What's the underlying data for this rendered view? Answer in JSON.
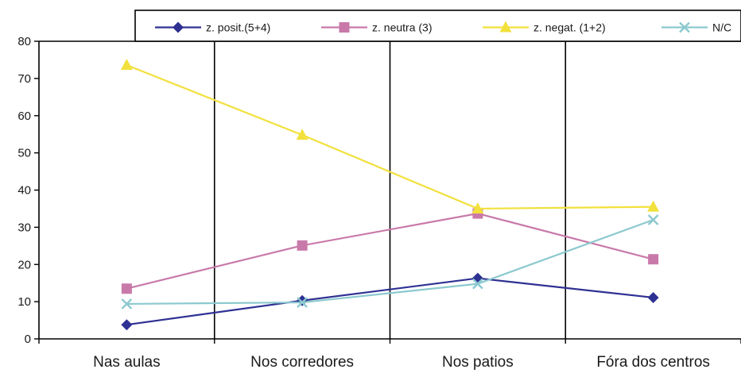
{
  "chart_data": {
    "type": "line",
    "categories": [
      "Nas aulas",
      "Nos corredores",
      "Nos patios",
      "Fóra dos centros"
    ],
    "ylim": [
      0,
      80
    ],
    "yticks": [
      0,
      10,
      20,
      30,
      40,
      50,
      60,
      70,
      80
    ],
    "grid": "vertical lines between categories",
    "legend_position": "top",
    "series": [
      {
        "name": "z. posit.(5+4)",
        "values": [
          3.8,
          10.3,
          16.3,
          11.1
        ],
        "color": "#2e3192",
        "marker": "diamond"
      },
      {
        "name": "z. neutra (3)",
        "values": [
          13.5,
          25.1,
          33.7,
          21.4
        ],
        "color": "#c979a9",
        "marker": "square"
      },
      {
        "name": "z. negat. (1+2)",
        "values": [
          73.6,
          54.8,
          35.0,
          35.5
        ],
        "color": "#f2e03c",
        "marker": "triangle"
      },
      {
        "name": "N/C",
        "values": [
          9.4,
          9.8,
          14.8,
          32.0
        ],
        "color": "#8cc9cf",
        "marker": "x"
      }
    ]
  }
}
